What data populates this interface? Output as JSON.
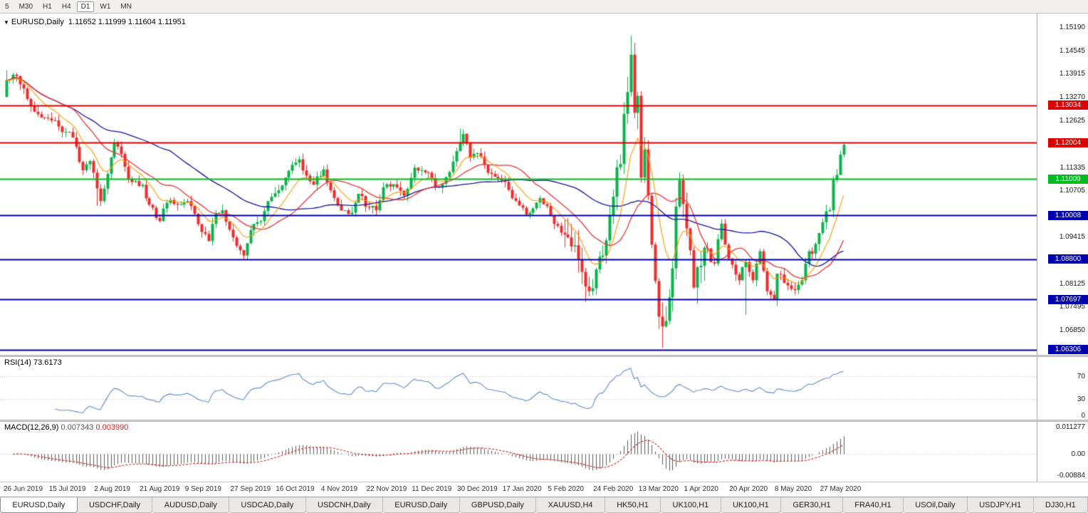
{
  "colors": {
    "up": "#0cb24a",
    "down": "#f12b2b",
    "wick_up": "#0a9a40",
    "wick_down": "#d42222",
    "ma_fast": "#ff9900",
    "ma_mid": "#e93636",
    "ma_slow": "#14149e",
    "rsi_line": "#5e8cc8",
    "macd_hist": "#5a5a5a",
    "macd_signal": "#d42222",
    "level_red": "#dd0000",
    "level_green": "#00bb22",
    "level_blue": "#0000ae",
    "guide_gray": "#c4c4c4"
  },
  "toolbar": {
    "timeframes": [
      {
        "label": "5",
        "active": false
      },
      {
        "label": "M30",
        "active": false
      },
      {
        "label": "H1",
        "active": false
      },
      {
        "label": "H4",
        "active": false
      },
      {
        "label": "D1",
        "active": true
      },
      {
        "label": "W1",
        "active": false
      },
      {
        "label": "MN",
        "active": false
      }
    ]
  },
  "main_chart": {
    "title": "EURUSD,Daily",
    "ohlc": "1.11652 1.11999 1.11604 1.11951",
    "y_axis_labels": [
      {
        "text": "1.15190",
        "price": 1.1519
      },
      {
        "text": "1.14545",
        "price": 1.14545
      },
      {
        "text": "1.13915",
        "price": 1.13915
      },
      {
        "text": "1.13270",
        "price": 1.1327
      },
      {
        "text": "1.12625",
        "price": 1.12625
      },
      {
        "text": "1.11335",
        "price": 1.11335
      },
      {
        "text": "1.10705",
        "price": 1.10705
      },
      {
        "text": "1.09415",
        "price": 1.09415
      },
      {
        "text": "1.08125",
        "price": 1.08125
      },
      {
        "text": "1.07495",
        "price": 1.07495
      },
      {
        "text": "1.06850",
        "price": 1.0685
      }
    ],
    "levels": [
      {
        "price": 1.13034,
        "label": "1.13034",
        "color_key": "level_red"
      },
      {
        "price": 1.12004,
        "label": "1.12004",
        "color_key": "level_red"
      },
      {
        "price": 1.11009,
        "label": "1.11009",
        "color_key": "level_green"
      },
      {
        "price": 1.10008,
        "label": "1.10008",
        "color_key": "level_blue"
      },
      {
        "price": 1.088,
        "label": "1.08800",
        "color_key": "level_blue"
      },
      {
        "price": 1.07697,
        "label": "1.07697",
        "color_key": "level_blue"
      },
      {
        "price": 1.06306,
        "label": "1.06306",
        "color_key": "level_blue"
      }
    ]
  },
  "rsi_panel": {
    "header": "RSI(14) 73.6173",
    "axis_labels": [
      {
        "text": "70",
        "value": 70
      },
      {
        "text": "30",
        "value": 30
      },
      {
        "text": "0",
        "value": 0
      }
    ],
    "guide_levels": [
      70,
      30
    ]
  },
  "macd_panel": {
    "header_name": "MACD(12,26,9)",
    "header_val1": "0.007343",
    "header_val2": "0.003990",
    "axis_labels": [
      {
        "text": "0.011277",
        "value": 0.011277
      },
      {
        "text": "0.00",
        "value": 0
      },
      {
        "text": "-0.00884",
        "value": -0.00884
      }
    ]
  },
  "dates": [
    "26 Jun 2019",
    "15 Jul 2019",
    "2 Aug 2019",
    "21 Aug 2019",
    "9 Sep 2019",
    "27 Sep 2019",
    "16 Oct 2019",
    "4 Nov 2019",
    "22 Nov 2019",
    "11 Dec 2019",
    "30 Dec 2019",
    "17 Jan 2020",
    "5 Feb 2020",
    "24 Feb 2020",
    "13 Mar 2020",
    "1 Apr 2020",
    "20 Apr 2020",
    "8 May 2020",
    "27 May 2020"
  ],
  "tabs": [
    {
      "label": "EURUSD,Daily",
      "active": true
    },
    {
      "label": "USDCHF,Daily",
      "active": false
    },
    {
      "label": "AUDUSD,Daily",
      "active": false
    },
    {
      "label": "USDCAD,Daily",
      "active": false
    },
    {
      "label": "USDCNH,Daily",
      "active": false
    },
    {
      "label": "EURUSD,Daily",
      "active": false
    },
    {
      "label": "GBPUSD,Daily",
      "active": false
    },
    {
      "label": "XAUUSD,H4",
      "active": false
    },
    {
      "label": "HK50,H1",
      "active": false
    },
    {
      "label": "UK100,H1",
      "active": false
    },
    {
      "label": "UK100,H1",
      "active": false
    },
    {
      "label": "GER30,H1",
      "active": false
    },
    {
      "label": "FRA40,H1",
      "active": false
    },
    {
      "label": "USOil,Daily",
      "active": false
    },
    {
      "label": "USDJPY,H1",
      "active": false
    },
    {
      "label": "DJ30,H1",
      "active": false
    }
  ],
  "chart_data": {
    "type": "candlestick",
    "symbol": "EURUSD",
    "timeframe": "Daily",
    "title": "EURUSD,Daily",
    "last_ohlc": {
      "open": 1.11652,
      "high": 1.11999,
      "low": 1.11604,
      "close": 1.11951
    },
    "bars": 241,
    "bars_per_label": 13,
    "x_labels": [
      "26 Jun 2019",
      "15 Jul 2019",
      "2 Aug 2019",
      "21 Aug 2019",
      "9 Sep 2019",
      "27 Sep 2019",
      "16 Oct 2019",
      "4 Nov 2019",
      "22 Nov 2019",
      "11 Dec 2019",
      "30 Dec 2019",
      "17 Jan 2020",
      "5 Feb 2020",
      "24 Feb 2020",
      "13 Mar 2020",
      "1 Apr 2020",
      "20 Apr 2020",
      "8 May 2020",
      "27 May 2020"
    ],
    "visible_price_range": [
      1.059,
      1.1556
    ],
    "horizontal_levels": [
      1.13034,
      1.12004,
      1.11009,
      1.10008,
      1.088,
      1.07697,
      1.06306
    ],
    "moving_averages": [
      {
        "name": "fast",
        "method": "ema",
        "period": 10,
        "color_key": "ma_fast"
      },
      {
        "name": "mid",
        "method": "sma",
        "period": 20,
        "color_key": "ma_mid"
      },
      {
        "name": "slow",
        "method": "sma",
        "period": 48,
        "color_key": "ma_slow"
      }
    ],
    "indicators": {
      "rsi_period": 14,
      "rsi_last": 73.6173,
      "macd_params": [
        12,
        26,
        9
      ],
      "macd_last": 0.007343,
      "macd_signal_last": 0.00399,
      "macd_axis_range": [
        -0.0105,
        0.0125
      ]
    },
    "close_anchors": [
      [
        0,
        1.1372
      ],
      [
        2,
        1.1388
      ],
      [
        5,
        1.135
      ],
      [
        8,
        1.1286
      ],
      [
        11,
        1.127
      ],
      [
        13,
        1.1262
      ],
      [
        16,
        1.123
      ],
      [
        19,
        1.1215
      ],
      [
        22,
        1.1125
      ],
      [
        24,
        1.115
      ],
      [
        26,
        1.1075
      ],
      [
        27,
        1.104
      ],
      [
        29,
        1.1115
      ],
      [
        31,
        1.12
      ],
      [
        33,
        1.117
      ],
      [
        35,
        1.11
      ],
      [
        37,
        1.1095
      ],
      [
        39,
        1.1085
      ],
      [
        41,
        1.103
      ],
      [
        44,
        1.0985
      ],
      [
        46,
        1.1035
      ],
      [
        49,
        1.103
      ],
      [
        52,
        1.104
      ],
      [
        54,
        1.1005
      ],
      [
        56,
        1.0955
      ],
      [
        58,
        1.093
      ],
      [
        60,
        1.1005
      ],
      [
        62,
        1.1015
      ],
      [
        65,
        1.094
      ],
      [
        67,
        1.0905
      ],
      [
        68,
        1.089
      ],
      [
        70,
        1.096
      ],
      [
        73,
        1.0985
      ],
      [
        75,
        1.104
      ],
      [
        78,
        1.107
      ],
      [
        80,
        1.1105
      ],
      [
        82,
        1.114
      ],
      [
        84,
        1.1155
      ],
      [
        86,
        1.111
      ],
      [
        88,
        1.1085
      ],
      [
        91,
        1.1127
      ],
      [
        93,
        1.107
      ],
      [
        95,
        1.103
      ],
      [
        97,
        1.1015
      ],
      [
        99,
        1.1008
      ],
      [
        101,
        1.106
      ],
      [
        104,
        1.1022
      ],
      [
        106,
        1.1015
      ],
      [
        108,
        1.1078
      ],
      [
        110,
        1.108
      ],
      [
        112,
        1.1078
      ],
      [
        114,
        1.1055
      ],
      [
        117,
        1.1132
      ],
      [
        119,
        1.1125
      ],
      [
        121,
        1.1118
      ],
      [
        123,
        1.108
      ],
      [
        125,
        1.1088
      ],
      [
        127,
        1.112
      ],
      [
        130,
        1.1199
      ],
      [
        131,
        1.1225
      ],
      [
        133,
        1.116
      ],
      [
        135,
        1.1172
      ],
      [
        137,
        1.114
      ],
      [
        139,
        1.1115
      ],
      [
        141,
        1.1103
      ],
      [
        143,
        1.1093
      ],
      [
        145,
        1.1048
      ],
      [
        147,
        1.1028
      ],
      [
        149,
        1.1003
      ],
      [
        151,
        1.102
      ],
      [
        153,
        1.1048
      ],
      [
        156,
        1.1
      ],
      [
        158,
        1.0972
      ],
      [
        160,
        1.0948
      ],
      [
        162,
        1.0915
      ],
      [
        164,
        1.088
      ],
      [
        166,
        1.0805
      ],
      [
        167,
        1.0792
      ],
      [
        168,
        1.08
      ],
      [
        169,
        1.0852
      ],
      [
        171,
        1.089
      ],
      [
        172,
        1.0932
      ],
      [
        174,
        1.1052
      ],
      [
        175,
        1.1133
      ],
      [
        176,
        1.1142
      ],
      [
        177,
        1.128
      ],
      [
        178,
        1.134
      ],
      [
        179,
        1.1443
      ],
      [
        180,
        1.1283
      ],
      [
        181,
        1.133
      ],
      [
        182,
        1.1105
      ],
      [
        183,
        1.1182
      ],
      [
        184,
        1.1055
      ],
      [
        185,
        1.092
      ],
      [
        186,
        1.082
      ],
      [
        187,
        1.0722
      ],
      [
        188,
        1.0695
      ],
      [
        189,
        1.071
      ],
      [
        190,
        1.0775
      ],
      [
        191,
        1.0855
      ],
      [
        192,
        1.1025
      ],
      [
        193,
        1.1098
      ],
      [
        194,
        1.1032
      ],
      [
        195,
        1.0965
      ],
      [
        196,
        1.0905
      ],
      [
        197,
        1.0802
      ],
      [
        198,
        1.0858
      ],
      [
        199,
        1.0862
      ],
      [
        200,
        1.0912
      ],
      [
        201,
        1.091
      ],
      [
        202,
        1.0872
      ],
      [
        203,
        1.0868
      ],
      [
        204,
        1.0935
      ],
      [
        205,
        1.0978
      ],
      [
        206,
        1.092
      ],
      [
        207,
        1.0882
      ],
      [
        208,
        1.0865
      ],
      [
        209,
        1.0838
      ],
      [
        210,
        1.0822
      ],
      [
        211,
        1.0858
      ],
      [
        212,
        1.0872
      ],
      [
        213,
        1.0845
      ],
      [
        214,
        1.0822
      ],
      [
        215,
        1.0868
      ],
      [
        216,
        1.0902
      ],
      [
        217,
        1.0848
      ],
      [
        218,
        1.0792
      ],
      [
        219,
        1.0782
      ],
      [
        220,
        1.0768
      ],
      [
        221,
        1.084
      ],
      [
        222,
        1.0838
      ],
      [
        223,
        1.0815
      ],
      [
        224,
        1.0808
      ],
      [
        225,
        1.0798
      ],
      [
        226,
        1.0795
      ],
      [
        227,
        1.081
      ],
      [
        228,
        1.0822
      ],
      [
        229,
        1.0868
      ],
      [
        230,
        1.0902
      ],
      [
        231,
        1.0895
      ],
      [
        232,
        1.0922
      ],
      [
        233,
        1.0952
      ],
      [
        234,
        1.0982
      ],
      [
        235,
        1.1012
      ],
      [
        236,
        1.1015
      ],
      [
        237,
        1.1098
      ],
      [
        238,
        1.1112
      ],
      [
        239,
        1.1168
      ],
      [
        240,
        1.1195
      ]
    ],
    "overrides": {
      "0": {
        "h": 1.14
      },
      "26": {
        "l": 1.1027
      },
      "68": {
        "l": 1.0879
      },
      "130": {
        "h": 1.1239
      },
      "167": {
        "l": 1.0778
      },
      "179": {
        "h": 1.1495
      },
      "188": {
        "l": 1.0636
      },
      "212": {
        "l": 1.0727
      },
      "220": {
        "l": 1.0766
      },
      "240": {
        "h": 1.12,
        "l": 1.116
      }
    }
  }
}
